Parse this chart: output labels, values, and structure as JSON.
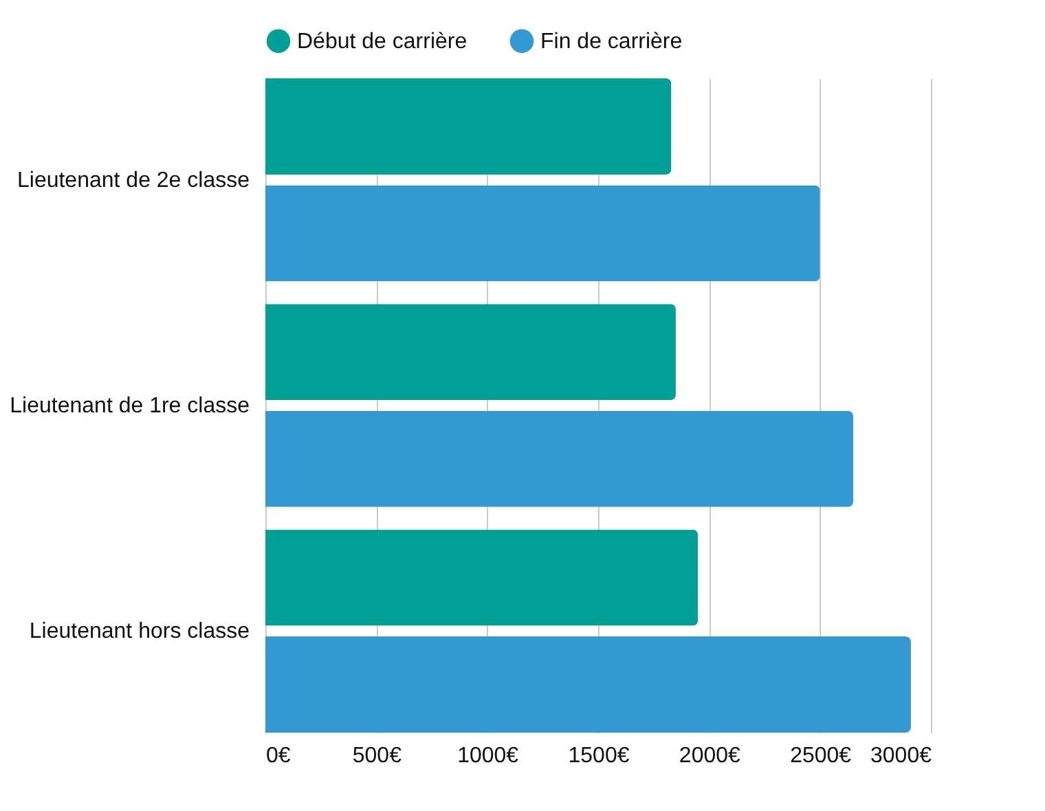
{
  "chart_data": {
    "type": "bar",
    "orientation": "horizontal",
    "categories": [
      "Lieutenant de 2e classe",
      "Lieutenant de 1re classe",
      "Lieutenant hors classe"
    ],
    "series": [
      {
        "name": "Début de carrière",
        "color": "#00a096",
        "values": [
          1830,
          1850,
          1950
        ]
      },
      {
        "name": "Fin de carrière",
        "color": "#3399d3",
        "values": [
          2500,
          2650,
          2910
        ]
      }
    ],
    "xlim": [
      0,
      3000
    ],
    "xticks": [
      {
        "value": 0,
        "label": "0€"
      },
      {
        "value": 500,
        "label": "500€"
      },
      {
        "value": 1000,
        "label": "1000€"
      },
      {
        "value": 1500,
        "label": "1500€"
      },
      {
        "value": 2000,
        "label": "2000€"
      },
      {
        "value": 2500,
        "label": "2500€"
      },
      {
        "value": 3000,
        "label": "3000€"
      }
    ],
    "grid": "x",
    "legend": "top"
  }
}
